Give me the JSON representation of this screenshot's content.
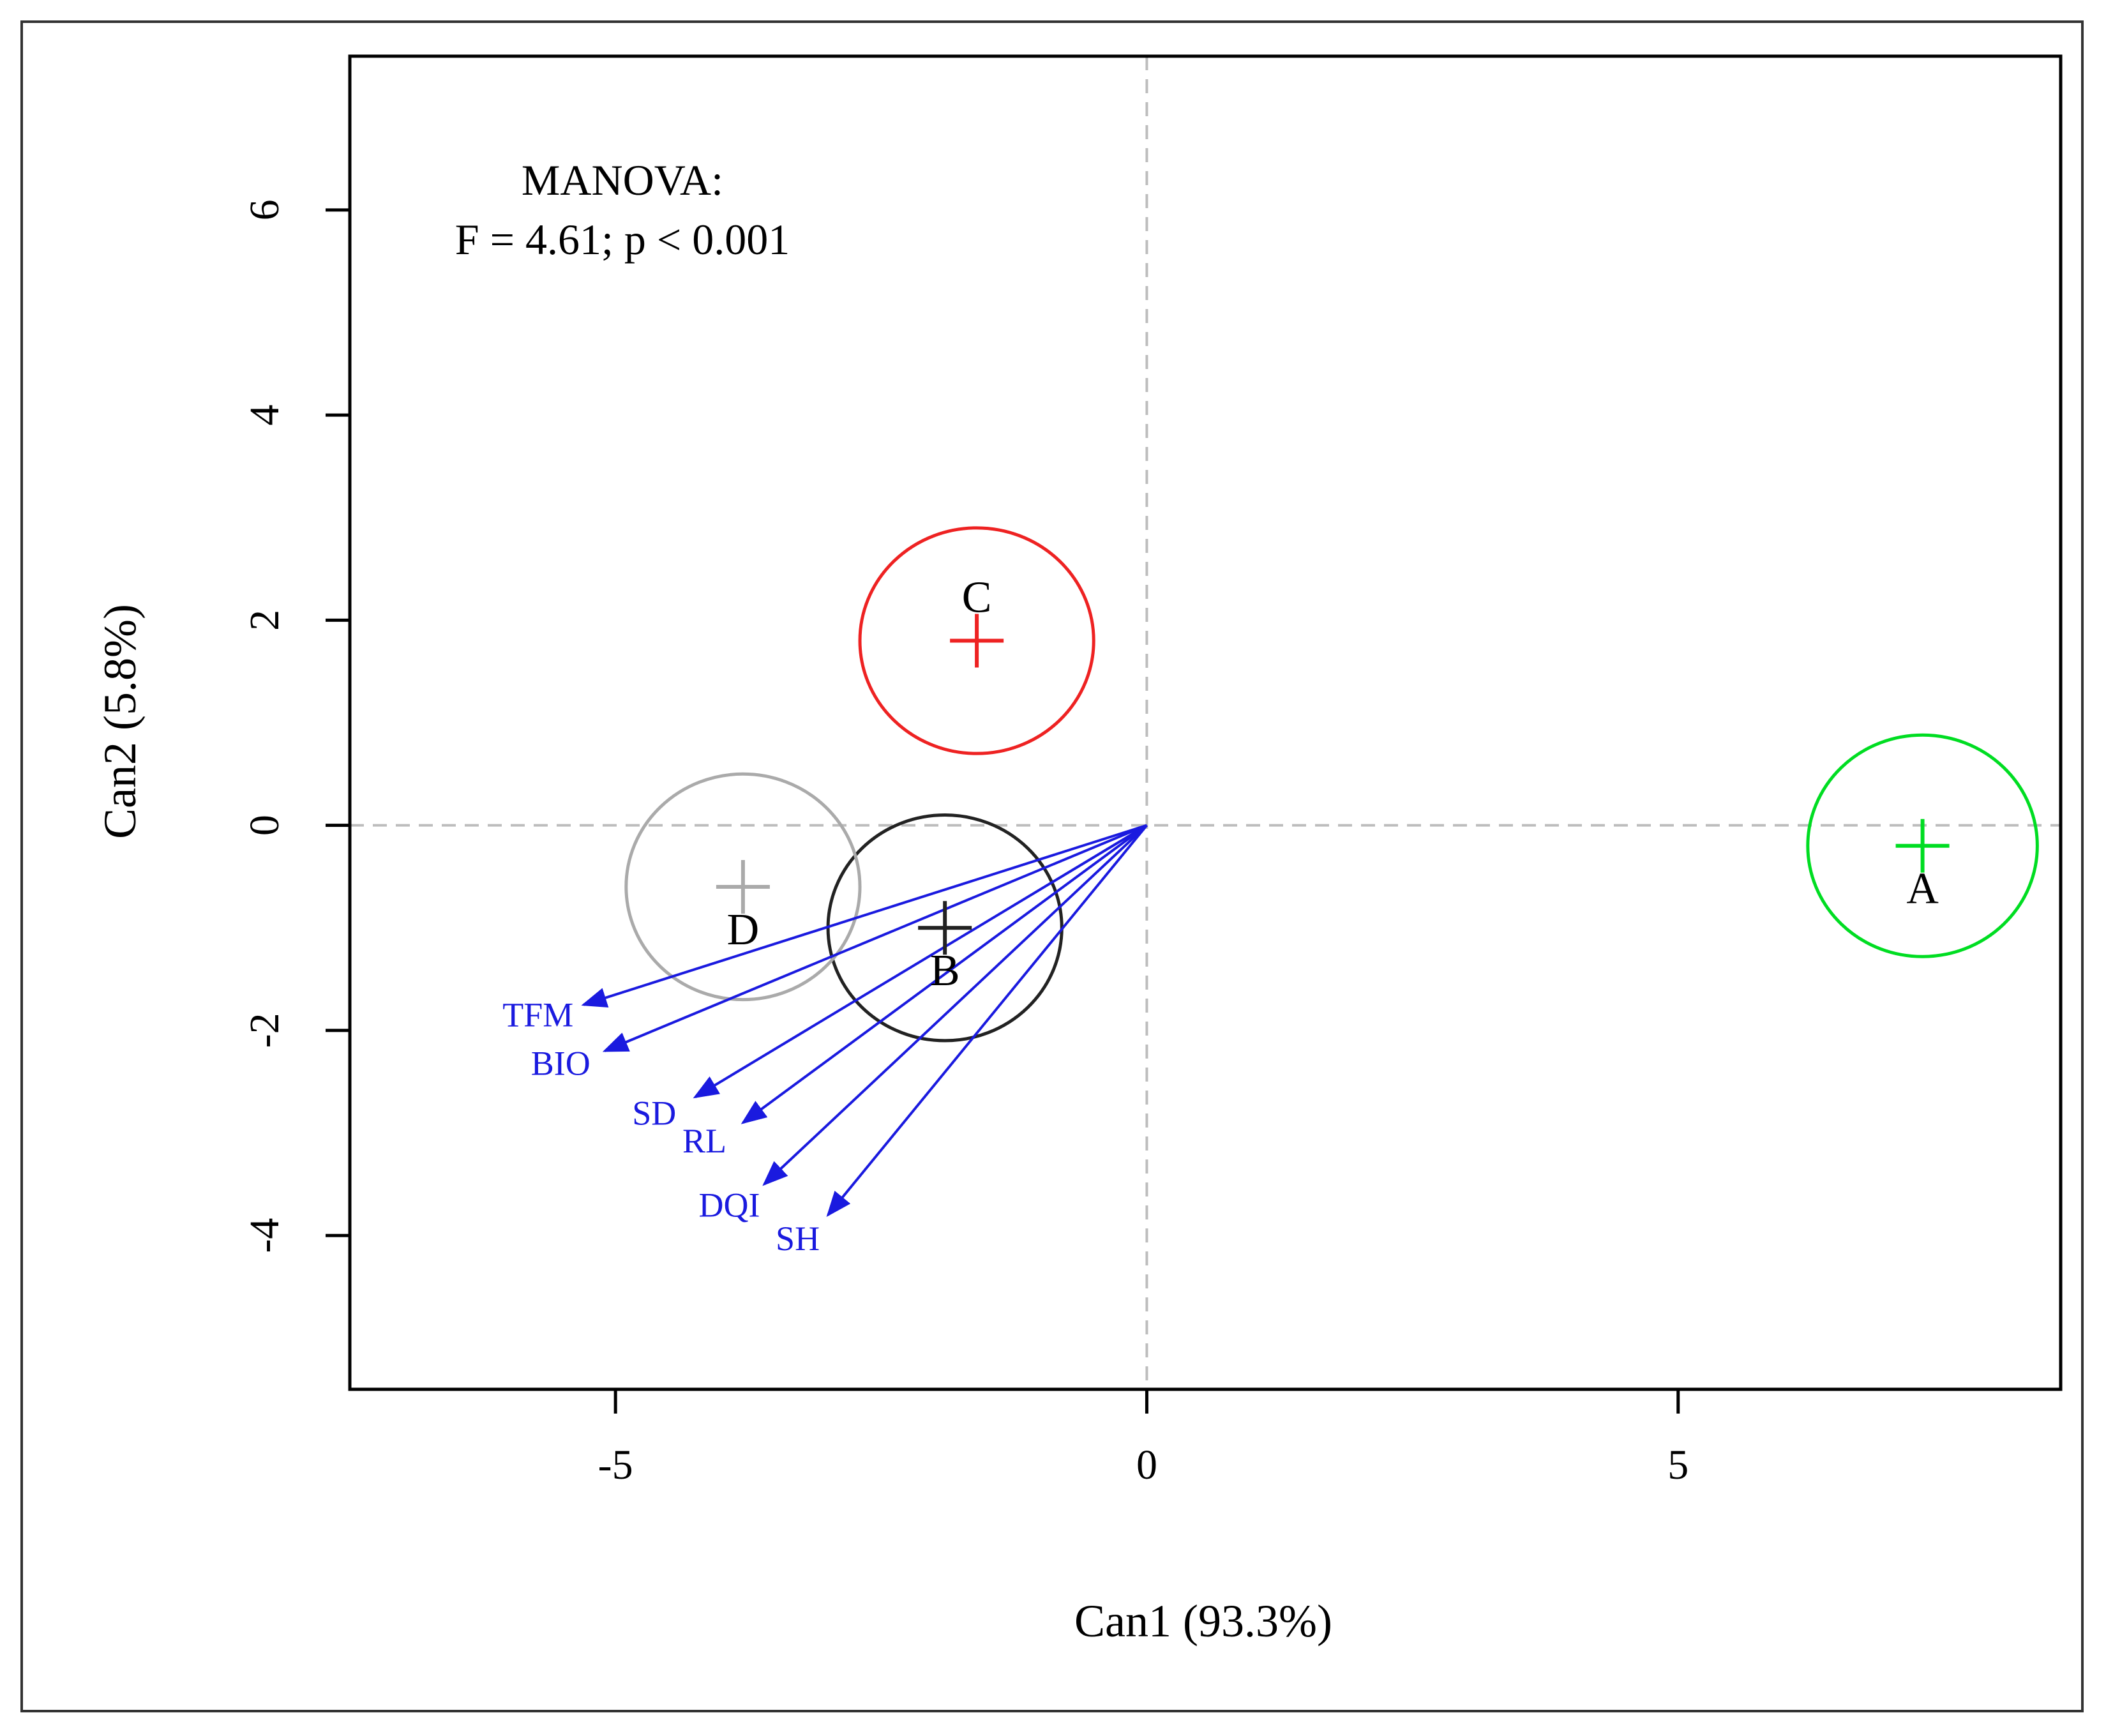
{
  "chart_data": {
    "type": "scatter",
    "title": "",
    "xlabel": "Can1 (93.3%)",
    "ylabel": "Can2 (5.8%)",
    "xlim": [
      -7.5,
      8.6
    ],
    "ylim": [
      -5.5,
      7.5
    ],
    "xticks": [
      -5,
      0,
      5
    ],
    "yticks": [
      -4,
      -2,
      0,
      2,
      4,
      6
    ],
    "reference_lines": {
      "x": 0,
      "y": 0,
      "style": "dashed"
    },
    "annotation": [
      "MANOVA:",
      "F = 4.61; p < 0.001"
    ],
    "groups": [
      {
        "name": "A",
        "x": 7.3,
        "y": -0.2,
        "radius": 1.08,
        "color": "#00dd22"
      },
      {
        "name": "B",
        "x": -1.9,
        "y": -1.0,
        "radius": 1.1,
        "color": "#222222"
      },
      {
        "name": "C",
        "x": -1.6,
        "y": 1.8,
        "radius": 1.1,
        "color": "#ee2222"
      },
      {
        "name": "D",
        "x": -3.8,
        "y": -0.6,
        "radius": 1.1,
        "color": "#aaaaaa"
      }
    ],
    "vectors": [
      {
        "name": "TFM",
        "x": -5.3,
        "y": -1.75
      },
      {
        "name": "BIO",
        "x": -5.1,
        "y": -2.2
      },
      {
        "name": "SD",
        "x": -4.25,
        "y": -2.65
      },
      {
        "name": "RL",
        "x": -3.8,
        "y": -2.9
      },
      {
        "name": "DQI",
        "x": -3.6,
        "y": -3.5
      },
      {
        "name": "SH",
        "x": -3.0,
        "y": -3.8
      }
    ],
    "vector_color": "#1a1adf"
  }
}
